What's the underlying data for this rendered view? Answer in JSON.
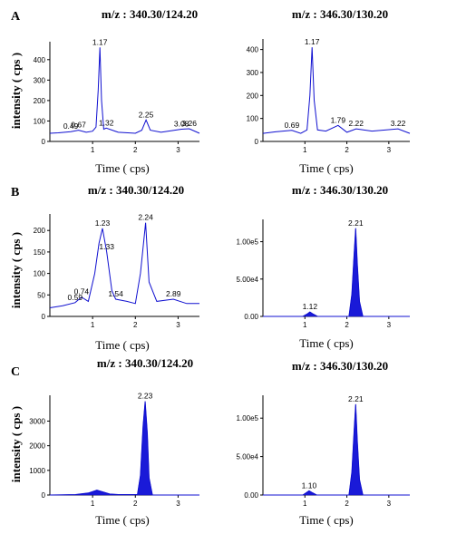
{
  "row_labels": [
    "A",
    "B",
    "C"
  ],
  "chart_data": [
    {
      "type": "line",
      "panel": "A-left",
      "title": "m/z : 340.30/124.20",
      "xlabel": "Time ( cps)",
      "ylabel": "intensity ( cps )",
      "xlim": [
        0,
        3.5
      ],
      "ylim": [
        0,
        470
      ],
      "yticks": [
        0,
        100,
        200,
        300,
        400
      ],
      "xticks": [
        1.0,
        2.0,
        3.0
      ],
      "series": [
        {
          "x": [
            0,
            0.2,
            0.49,
            0.67,
            0.85,
            1.0,
            1.08,
            1.13,
            1.17,
            1.21,
            1.26,
            1.32,
            1.6,
            2.0,
            2.15,
            2.25,
            2.35,
            2.6,
            3.08,
            3.26,
            3.5
          ],
          "values": [
            40,
            42,
            48,
            55,
            45,
            50,
            70,
            250,
            460,
            200,
            60,
            65,
            45,
            40,
            55,
            105,
            55,
            45,
            60,
            62,
            40
          ]
        }
      ],
      "annotations": [
        {
          "text": "0.49",
          "x": 0.49,
          "y": 48
        },
        {
          "text": "0.67",
          "x": 0.67,
          "y": 55
        },
        {
          "text": "1.17",
          "x": 1.17,
          "y": 460
        },
        {
          "text": "1.32",
          "x": 1.32,
          "y": 65
        },
        {
          "text": "2.25",
          "x": 2.25,
          "y": 105
        },
        {
          "text": "3.08",
          "x": 3.08,
          "y": 60
        },
        {
          "text": "3.26",
          "x": 3.26,
          "y": 62
        }
      ]
    },
    {
      "type": "line",
      "panel": "A-right",
      "title": "m/z : 346.30/130.20",
      "xlabel": "Time ( cps)",
      "ylabel": "",
      "xlim": [
        0,
        3.5
      ],
      "ylim": [
        0,
        430
      ],
      "yticks": [
        0,
        100,
        200,
        300,
        400
      ],
      "xticks": [
        1.0,
        2.0,
        3.0
      ],
      "series": [
        {
          "x": [
            0,
            0.3,
            0.69,
            0.9,
            1.05,
            1.12,
            1.17,
            1.22,
            1.3,
            1.5,
            1.79,
            2.0,
            2.22,
            2.6,
            3.22,
            3.5
          ],
          "values": [
            35,
            42,
            48,
            35,
            50,
            200,
            410,
            180,
            50,
            45,
            70,
            40,
            55,
            45,
            55,
            35
          ]
        }
      ],
      "annotations": [
        {
          "text": "0.69",
          "x": 0.69,
          "y": 48
        },
        {
          "text": "1.17",
          "x": 1.17,
          "y": 410
        },
        {
          "text": "1.79",
          "x": 1.79,
          "y": 70
        },
        {
          "text": "2.22",
          "x": 2.22,
          "y": 55
        },
        {
          "text": "3.22",
          "x": 3.22,
          "y": 55
        }
      ]
    },
    {
      "type": "line",
      "panel": "B-left",
      "title": "m/z : 340.30/124.20",
      "xlabel": "Time ( cps)",
      "ylabel": "intensity ( cps )",
      "xlim": [
        0,
        3.5
      ],
      "ylim": [
        0,
        230
      ],
      "yticks": [
        0,
        50,
        100,
        150,
        200
      ],
      "xticks": [
        1.0,
        2.0,
        3.0
      ],
      "series": [
        {
          "x": [
            0,
            0.3,
            0.59,
            0.74,
            0.9,
            1.05,
            1.15,
            1.23,
            1.33,
            1.45,
            1.54,
            1.8,
            2.0,
            2.12,
            2.24,
            2.32,
            2.5,
            2.89,
            3.2,
            3.5
          ],
          "values": [
            20,
            25,
            32,
            45,
            35,
            100,
            170,
            205,
            150,
            60,
            40,
            35,
            30,
            100,
            218,
            80,
            35,
            40,
            30,
            30
          ]
        }
      ],
      "annotations": [
        {
          "text": "0.59",
          "x": 0.59,
          "y": 32
        },
        {
          "text": "0.74",
          "x": 0.74,
          "y": 45
        },
        {
          "text": "1.23",
          "x": 1.23,
          "y": 205
        },
        {
          "text": "1.33",
          "x": 1.33,
          "y": 150
        },
        {
          "text": "1.54",
          "x": 1.54,
          "y": 40
        },
        {
          "text": "2.24",
          "x": 2.24,
          "y": 218
        },
        {
          "text": "2.89",
          "x": 2.89,
          "y": 40
        }
      ]
    },
    {
      "type": "area",
      "panel": "B-right",
      "title": "m/z : 346.30/130.20",
      "xlabel": "Time ( cps)",
      "ylabel": "",
      "xlim": [
        0,
        3.5
      ],
      "ylim": [
        0,
        125000
      ],
      "yticks": [
        0,
        50000,
        100000
      ],
      "ytick_labels": [
        "0.00",
        "5.00e4",
        "1.00e5"
      ],
      "xticks": [
        1.0,
        2.0,
        3.0
      ],
      "series": [
        {
          "x": [
            0,
            0.95,
            1.05,
            1.12,
            1.2,
            1.3,
            2.05,
            2.12,
            2.17,
            2.21,
            2.25,
            2.3,
            2.38,
            3.5
          ],
          "values": [
            0,
            0,
            3000,
            6000,
            3000,
            0,
            0,
            30000,
            80000,
            118000,
            70000,
            20000,
            0,
            0
          ]
        }
      ],
      "annotations": [
        {
          "text": "1.12",
          "x": 1.12,
          "y": 6000
        },
        {
          "text": "2.21",
          "x": 2.21,
          "y": 118000
        }
      ]
    },
    {
      "type": "area",
      "panel": "C-left",
      "title": "m/z : 340.30/124.20",
      "xlabel": "Time ( cps)",
      "ylabel": "intensity ( cps )",
      "xlim": [
        0,
        3.5
      ],
      "ylim": [
        0,
        3900
      ],
      "yticks": [
        0,
        1000,
        2000,
        3000
      ],
      "xticks": [
        1.0,
        2.0,
        3.0
      ],
      "series": [
        {
          "x": [
            0,
            0.6,
            0.9,
            1.1,
            1.25,
            1.4,
            1.6,
            2.05,
            2.12,
            2.18,
            2.23,
            2.28,
            2.32,
            2.4,
            3.5
          ],
          "values": [
            0,
            20,
            80,
            200,
            120,
            40,
            20,
            20,
            800,
            2800,
            3800,
            2500,
            700,
            0,
            0
          ]
        }
      ],
      "annotations": [
        {
          "text": "2.23",
          "x": 2.23,
          "y": 3800
        }
      ]
    },
    {
      "type": "area",
      "panel": "C-right",
      "title": "m/z : 346.30/130.20",
      "xlabel": "Time ( cps)",
      "ylabel": "",
      "xlim": [
        0,
        3.5
      ],
      "ylim": [
        0,
        125000
      ],
      "yticks": [
        0,
        50000,
        100000
      ],
      "ytick_labels": [
        "0.00",
        "5.00e4",
        "1.00e5"
      ],
      "xticks": [
        1.0,
        2.0,
        3.0
      ],
      "series": [
        {
          "x": [
            0,
            0.95,
            1.03,
            1.1,
            1.18,
            1.28,
            2.05,
            2.12,
            2.17,
            2.21,
            2.25,
            2.3,
            2.38,
            3.5
          ],
          "values": [
            0,
            0,
            3000,
            5500,
            3000,
            0,
            0,
            30000,
            80000,
            118000,
            70000,
            20000,
            0,
            0
          ]
        }
      ],
      "annotations": [
        {
          "text": "1.10",
          "x": 1.1,
          "y": 5500
        },
        {
          "text": "2.21",
          "x": 2.21,
          "y": 118000
        }
      ]
    }
  ]
}
